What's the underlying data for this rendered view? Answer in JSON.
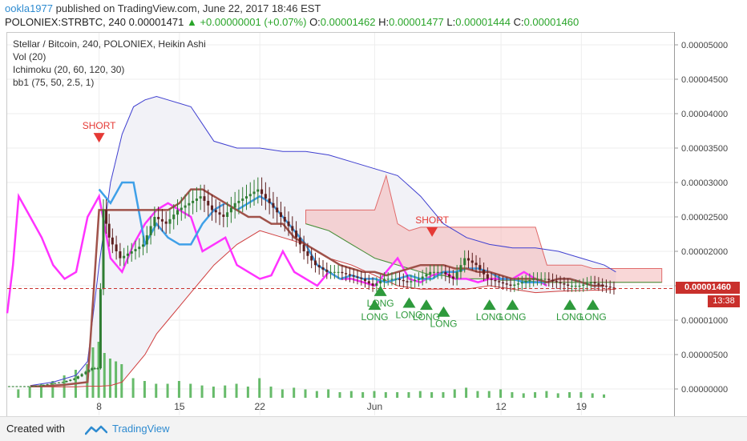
{
  "header": {
    "author": "ookla1977",
    "published": " published on TradingView.com, June 22, 2017 18:46 EST",
    "symbol": "POLONIEX:STRBTC, 240",
    "last": "0.00001471",
    "change": "+0.00000001 (+0.07%)",
    "o_label": "O:",
    "o_value": "0.00001462",
    "h_label": "H:",
    "h_value": "0.00001477",
    "l_label": "L:",
    "l_value": "0.00001444",
    "c_label": "C:",
    "c_value": "0.00001460"
  },
  "legend": {
    "line1": "Stellar / Bitcoin, 240, POLONIEX, Heikin Ashi",
    "line2": "Vol (20)",
    "line3": "Ichimoku (20, 60, 120, 30)",
    "line4": "bb1 (75, 50, 2.5, 1)"
  },
  "price_tag": "0.00001460",
  "time_tag": "13:38",
  "footer": {
    "created_with": "Created with",
    "brand": "TradingView"
  },
  "colors": {
    "candle_up": "#2e7d32",
    "candle_down": "#5d1f1f",
    "bb_upper": "#3f3fd0",
    "bb_lower": "#d03f3f",
    "ichimoku_cloud": "#f4b7b7",
    "magenta_line": "#ff33ff",
    "blue_line": "#3fa0e8",
    "brown_line": "#a0524a",
    "volume": "#4caf50",
    "signal_long": "#2e9a3c",
    "signal_short": "#e53935"
  },
  "chart_data": {
    "type": "candlestick",
    "title": "Stellar / Bitcoin, 240, POLONIEX, Heikin Ashi",
    "ylim": [
      -2e-07,
      5.3e-06
    ],
    "y_ticks": [
      "0.00005000",
      "0.00004500",
      "0.00004000",
      "0.00003500",
      "0.00003000",
      "0.00002500",
      "0.00002000",
      "0.00001500",
      "0.00001000",
      "0.00000500",
      "0.00000000"
    ],
    "x_ticks": [
      "8",
      "15",
      "22",
      "Jun",
      "12",
      "19"
    ],
    "x_tick_day": [
      8,
      15,
      22,
      32,
      43,
      50
    ],
    "x_range_day": [
      0,
      58
    ],
    "price_series_day": [
      0,
      1,
      2,
      3,
      4,
      5,
      6,
      7,
      7.5,
      8,
      8.5,
      9,
      10,
      11,
      12,
      13,
      14,
      15,
      16,
      17,
      18,
      19,
      20,
      21,
      22,
      23,
      24,
      25,
      26,
      27,
      28,
      29,
      30,
      31,
      32,
      33,
      34,
      35,
      36,
      37,
      38,
      39,
      40,
      41,
      42,
      43,
      44,
      45,
      46,
      47,
      48,
      49,
      50,
      51,
      52,
      53
    ],
    "price_series": [
      4e-07,
      4e-07,
      4e-07,
      5e-07,
      8e-07,
      1e-06,
      1.5e-06,
      2.5e-06,
      3e-06,
      3e-06,
      2.6e-05,
      2.2e-05,
      1.9e-05,
      2e-05,
      2.1e-05,
      2.5e-05,
      2.4e-05,
      2.6e-05,
      2.7e-05,
      2.8e-05,
      2.6e-05,
      2.5e-05,
      2.7e-05,
      2.8e-05,
      2.9e-05,
      2.7e-05,
      2.5e-05,
      2.3e-05,
      2e-05,
      1.8e-05,
      1.7e-05,
      1.7e-05,
      1.65e-05,
      1.6e-05,
      1.5e-05,
      1.6e-05,
      1.6e-05,
      1.55e-05,
      1.6e-05,
      1.7e-05,
      1.7e-05,
      1.6e-05,
      1.9e-05,
      1.8e-05,
      1.6e-05,
      1.55e-05,
      1.5e-05,
      1.55e-05,
      1.6e-05,
      1.6e-05,
      1.55e-05,
      1.5e-05,
      1.5e-05,
      1.55e-05,
      1.5e-05,
      1.46e-05
    ],
    "bb_upper_day": [
      2,
      4,
      6,
      7,
      8,
      9,
      10,
      11,
      12,
      13,
      14,
      16,
      18,
      20,
      22,
      24,
      26,
      28,
      30,
      32,
      34,
      36,
      38,
      40,
      42,
      44,
      46,
      48,
      50,
      52,
      53
    ],
    "bb_upper": [
      5e-07,
      1e-06,
      2e-06,
      4e-06,
      1.8e-05,
      3e-05,
      3.7e-05,
      4.1e-05,
      4.2e-05,
      4.25e-05,
      4.2e-05,
      4.1e-05,
      3.6e-05,
      3.5e-05,
      3.5e-05,
      3.45e-05,
      3.45e-05,
      3.4e-05,
      3.3e-05,
      3.2e-05,
      3.1e-05,
      2.8e-05,
      2.4e-05,
      2.2e-05,
      2.1e-05,
      2.05e-05,
      2.05e-05,
      2e-05,
      1.9e-05,
      1.8e-05,
      1.7e-05
    ],
    "bb_lower_day": [
      2,
      4,
      6,
      7,
      8,
      9,
      10,
      11,
      12,
      13,
      14,
      16,
      18,
      20,
      22,
      24,
      26,
      28,
      30,
      32,
      34,
      36,
      38,
      40,
      42,
      44,
      46,
      48,
      50,
      52,
      53
    ],
    "bb_lower": [
      3e-07,
      3e-07,
      3e-07,
      4e-07,
      4e-07,
      5e-07,
      1e-06,
      3e-06,
      5e-06,
      8e-06,
      1e-05,
      1.4e-05,
      1.8e-05,
      2.1e-05,
      2.3e-05,
      2.2e-05,
      2.1e-05,
      1.9e-05,
      1.8e-05,
      1.65e-05,
      1.5e-05,
      1.45e-05,
      1.45e-05,
      1.45e-05,
      1.5e-05,
      1.45e-05,
      1.4e-05,
      1.42e-05,
      1.43e-05,
      1.44e-05,
      1.45e-05
    ],
    "magenta_day": [
      0,
      0.5,
      1,
      2,
      3,
      4,
      5,
      6,
      7,
      8,
      9,
      10,
      11,
      12,
      13,
      14,
      15,
      16,
      17,
      18,
      19,
      20,
      21,
      22,
      23,
      24,
      25,
      26,
      27,
      28,
      29,
      30,
      31,
      32,
      33,
      34,
      35,
      36,
      37,
      38,
      39,
      40,
      41,
      42,
      43,
      44,
      45,
      46,
      47
    ],
    "magenta": [
      1.1e-05,
      1.8e-05,
      2.8e-05,
      2.5e-05,
      2.2e-05,
      1.8e-05,
      1.6e-05,
      1.7e-05,
      2.5e-05,
      2.8e-05,
      1.9e-05,
      1.7e-05,
      2.1e-05,
      2.4e-05,
      2.6e-05,
      2.7e-05,
      2.6e-05,
      2.5e-05,
      2e-05,
      2.1e-05,
      2.2e-05,
      1.8e-05,
      1.7e-05,
      1.6e-05,
      1.65e-05,
      2e-05,
      1.7e-05,
      1.6e-05,
      1.5e-05,
      1.7e-05,
      1.6e-05,
      1.6e-05,
      1.55e-05,
      1.5e-05,
      1.7e-05,
      1.9e-05,
      1.6e-05,
      1.55e-05,
      1.65e-05,
      1.7e-05,
      1.6e-05,
      1.6e-05,
      1.55e-05,
      1.6e-05,
      1.6e-05,
      1.6e-05,
      1.7e-05,
      1.6e-05,
      1.5e-05
    ],
    "blue_day": [
      8,
      9,
      10,
      11,
      12,
      13,
      14,
      15,
      16,
      17,
      18,
      19,
      20,
      21,
      22,
      23,
      24,
      25,
      26,
      27,
      28,
      29,
      30,
      31,
      32,
      33,
      34,
      35,
      36,
      37,
      38,
      39,
      40,
      41,
      42,
      43,
      44,
      45,
      46,
      47,
      48,
      49,
      50,
      51,
      52
    ],
    "blue": [
      2.9e-05,
      2.7e-05,
      3e-05,
      3e-05,
      2.1e-05,
      2.4e-05,
      2.2e-05,
      2.1e-05,
      2.1e-05,
      2.4e-05,
      2.6e-05,
      2.7e-05,
      2.6e-05,
      2.7e-05,
      2.8e-05,
      2.7e-05,
      2.5e-05,
      2.3e-05,
      2.1e-05,
      1.8e-05,
      1.7e-05,
      1.6e-05,
      1.65e-05,
      1.6e-05,
      1.6e-05,
      1.55e-05,
      1.6e-05,
      1.65e-05,
      1.6e-05,
      1.6e-05,
      1.7e-05,
      1.7e-05,
      1.75e-05,
      1.75e-05,
      1.7e-05,
      1.6e-05,
      1.6e-05,
      1.55e-05,
      1.55e-05,
      1.55e-05,
      1.6e-05,
      1.6e-05,
      1.55e-05,
      1.5e-05,
      1.5e-05
    ],
    "brown_day": [
      2,
      3,
      4,
      5,
      6,
      7,
      8,
      9,
      10,
      11,
      12,
      13,
      14,
      15,
      16,
      17,
      18,
      19,
      20,
      21,
      22,
      23,
      24,
      25,
      26,
      27,
      28,
      29,
      30,
      31,
      32,
      33,
      34,
      35,
      36,
      37,
      38,
      39,
      40,
      41,
      42,
      43,
      44,
      45,
      46,
      47,
      48,
      49,
      50,
      51,
      52
    ],
    "brown": [
      4e-07,
      4e-07,
      5e-07,
      6e-07,
      8e-07,
      1e-06,
      2.6e-05,
      2.6e-05,
      2.6e-05,
      2.6e-05,
      2.6e-05,
      2.6e-05,
      2.6e-05,
      2.7e-05,
      2.9e-05,
      2.9e-05,
      2.8e-05,
      2.7e-05,
      2.6e-05,
      2.5e-05,
      2.5e-05,
      2.4e-05,
      2.4e-05,
      2.2e-05,
      2.1e-05,
      2e-05,
      1.9e-05,
      1.8e-05,
      1.75e-05,
      1.7e-05,
      1.7e-05,
      1.65e-05,
      1.7e-05,
      1.75e-05,
      1.8e-05,
      1.8e-05,
      1.8e-05,
      1.75e-05,
      1.75e-05,
      1.7e-05,
      1.7e-05,
      1.65e-05,
      1.6e-05,
      1.6e-05,
      1.6e-05,
      1.55e-05,
      1.6e-05,
      1.6e-05,
      1.55e-05,
      1.5e-05,
      1.5e-05
    ],
    "cloud_top_day": [
      26,
      27,
      28,
      29,
      30,
      31,
      32,
      33,
      34,
      35,
      36,
      37,
      38,
      39,
      40,
      41,
      42,
      43,
      44,
      45,
      46,
      47,
      48,
      49,
      50,
      51,
      52,
      53,
      54,
      55,
      56,
      57
    ],
    "cloud_top": [
      2.6e-05,
      2.6e-05,
      2.6e-05,
      2.6e-05,
      2.6e-05,
      2.6e-05,
      2.6e-05,
      3.1e-05,
      2.4e-05,
      2.3e-05,
      2.35e-05,
      2.35e-05,
      2.35e-05,
      2.35e-05,
      2.35e-05,
      2.35e-05,
      2.35e-05,
      2.35e-05,
      2.35e-05,
      2.35e-05,
      2.35e-05,
      1.8e-05,
      1.8e-05,
      1.8e-05,
      1.8e-05,
      1.75e-05,
      1.75e-05,
      1.75e-05,
      1.75e-05,
      1.75e-05,
      1.75e-05,
      1.75e-05
    ],
    "cloud_bottom": [
      2.4e-05,
      2.35e-05,
      2.3e-05,
      2.2e-05,
      2.1e-05,
      2e-05,
      1.9e-05,
      1.85e-05,
      1.8e-05,
      1.75e-05,
      1.7e-05,
      1.65e-05,
      1.65e-05,
      1.6e-05,
      1.6e-05,
      1.6e-05,
      1.6e-05,
      1.58e-05,
      1.58e-05,
      1.57e-05,
      1.56e-05,
      1.55e-05,
      1.55e-05,
      1.55e-05,
      1.55e-05,
      1.55e-05,
      1.55e-05,
      1.55e-05,
      1.55e-05,
      1.55e-05,
      1.55e-05,
      1.55e-05
    ],
    "volume_day": [
      1,
      2,
      3,
      4,
      5,
      6,
      7,
      7.5,
      8,
      8.5,
      9,
      9.5,
      10,
      11,
      12,
      13,
      14,
      15,
      16,
      17,
      18,
      19,
      20,
      21,
      22,
      23,
      24,
      25,
      26,
      27,
      28,
      29,
      30,
      31,
      32,
      33,
      34,
      35,
      36,
      37,
      38,
      39,
      40,
      41,
      42,
      43,
      44,
      45,
      46,
      47,
      48,
      49,
      50,
      51,
      52
    ],
    "volume": [
      0.15,
      0.2,
      0.25,
      0.3,
      0.4,
      0.5,
      0.6,
      0.9,
      1.0,
      0.8,
      0.7,
      0.65,
      0.6,
      0.35,
      0.3,
      0.25,
      0.25,
      0.3,
      0.25,
      0.22,
      0.2,
      0.22,
      0.25,
      0.2,
      0.35,
      0.2,
      0.15,
      0.18,
      0.15,
      0.12,
      0.15,
      0.1,
      0.12,
      0.1,
      0.12,
      0.1,
      0.1,
      0.1,
      0.12,
      0.1,
      0.1,
      0.15,
      0.18,
      0.12,
      0.12,
      0.15,
      0.1,
      0.08,
      0.1,
      0.12,
      0.08,
      0.1,
      0.1,
      0.08,
      0.06
    ],
    "signals": [
      {
        "label": "SHORT",
        "day": 8,
        "price": 3.72e-05,
        "dir": "short"
      },
      {
        "label": "SHORT",
        "day": 37,
        "price": 2.35e-05,
        "dir": "short"
      },
      {
        "label": "LONG",
        "day": 32.5,
        "price": 1.35e-05,
        "dir": "long"
      },
      {
        "label": "LONG",
        "day": 32,
        "price": 1.15e-05,
        "dir": "long"
      },
      {
        "label": "LONG",
        "day": 35,
        "price": 1.18e-05,
        "dir": "long"
      },
      {
        "label": "LONG",
        "day": 36.5,
        "price": 1.15e-05,
        "dir": "long"
      },
      {
        "label": "LONG",
        "day": 38,
        "price": 1.05e-05,
        "dir": "long"
      },
      {
        "label": "LONG",
        "day": 42,
        "price": 1.15e-05,
        "dir": "long"
      },
      {
        "label": "LONG",
        "day": 44,
        "price": 1.15e-05,
        "dir": "long"
      },
      {
        "label": "LONG",
        "day": 49,
        "price": 1.15e-05,
        "dir": "long"
      },
      {
        "label": "LONG",
        "day": 51,
        "price": 1.15e-05,
        "dir": "long"
      }
    ],
    "current_price": 1.46e-05
  }
}
